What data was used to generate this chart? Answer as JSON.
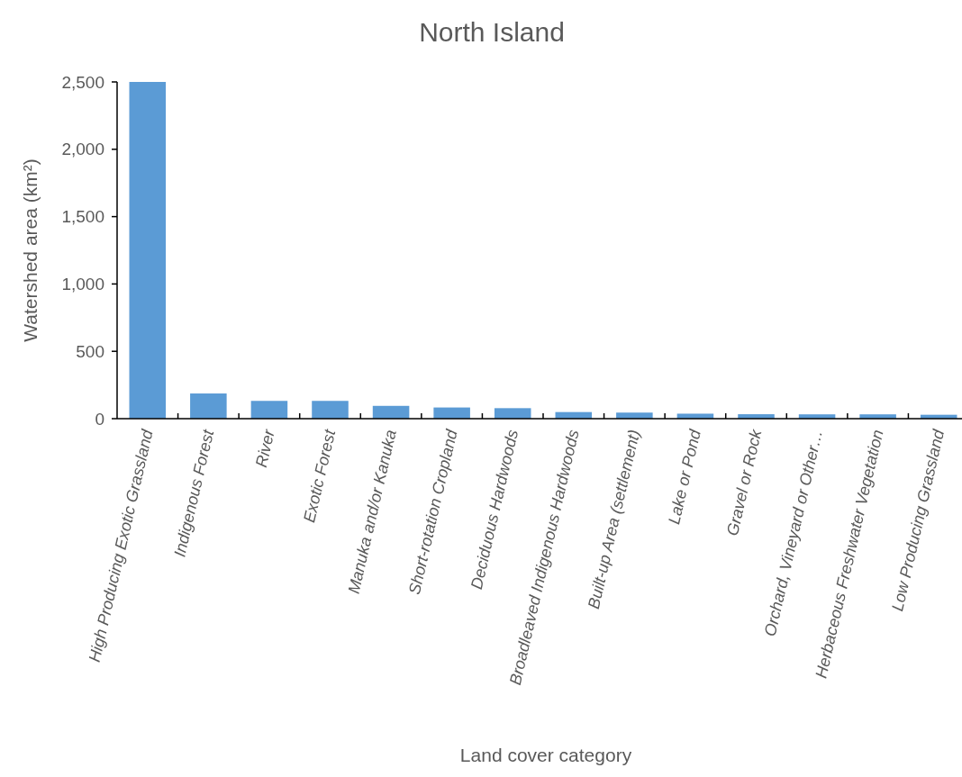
{
  "chart_data": {
    "type": "bar",
    "title": "North Island",
    "xlabel": "Land cover category",
    "ylabel": "Watershed area (km²)",
    "categories": [
      "High Producing Exotic Grassland",
      "Indigenous Forest",
      "River",
      "Exotic Forest",
      "Manuka and/or Kanuka",
      "Short-rotation Cropland",
      "Deciduous Hardwoods",
      "Broadleaved Indigenous Hardwoods",
      "Built-up Area (settlement)",
      "Lake or Pond",
      "Gravel or Rock",
      "Orchard, Vineyard or Other…",
      "Herbaceous Freshwater Vegetation",
      "Low Producing Grassland"
    ],
    "values": [
      2500,
      187,
      132,
      132,
      95,
      83,
      78,
      49,
      45,
      37,
      33,
      32,
      32,
      29
    ],
    "color": "#5b9bd5",
    "ylim": [
      0,
      2500
    ],
    "yticks": [
      {
        "value": 0,
        "label": "0"
      },
      {
        "value": 500,
        "label": "500"
      },
      {
        "value": 1000,
        "label": "1,000"
      },
      {
        "value": 1500,
        "label": "1,500"
      },
      {
        "value": 2000,
        "label": "2,000"
      },
      {
        "value": 2500,
        "label": "2,500"
      }
    ],
    "grid": false
  }
}
